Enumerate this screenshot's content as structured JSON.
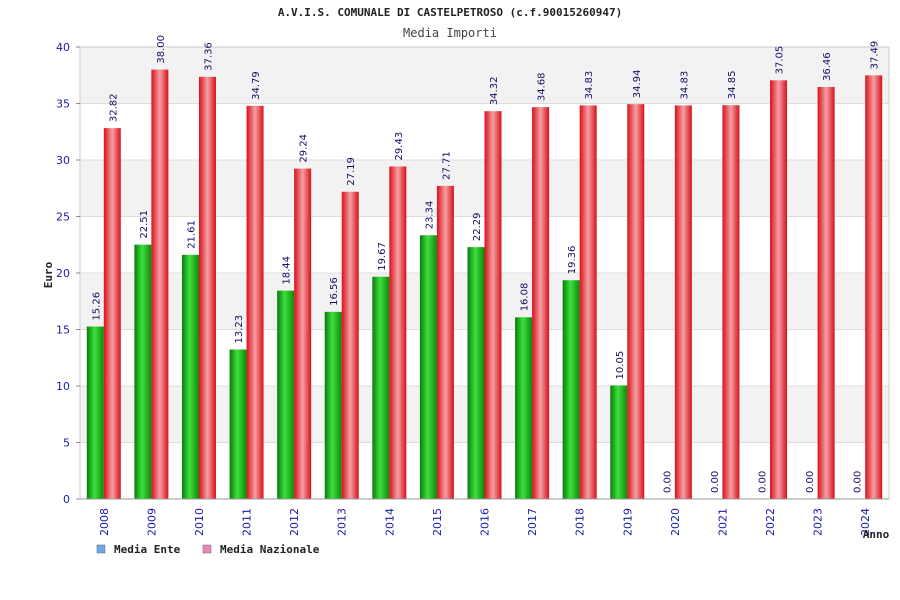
{
  "chart_data": {
    "type": "bar",
    "title": "A.V.I.S. COMUNALE DI CASTELPETROSO (c.f.90015260947)",
    "subtitle": "Media Importi",
    "xlabel": "Anno",
    "ylabel": "Euro",
    "ylim": [
      0,
      40
    ],
    "yticks": [
      "0",
      "5",
      "10",
      "15",
      "20",
      "25",
      "30",
      "35",
      "40"
    ],
    "grid": true,
    "legend_position": "bottom-left",
    "categories": [
      "2008",
      "2009",
      "2010",
      "2011",
      "2012",
      "2013",
      "2014",
      "2015",
      "2016",
      "2017",
      "2018",
      "2019",
      "2020",
      "2021",
      "2022",
      "2023",
      "2024"
    ],
    "series": [
      {
        "name": "Media Ente",
        "color": "#1fb81f",
        "legend_color": "#6fa8e8",
        "values": [
          15.26,
          22.51,
          21.61,
          13.23,
          18.44,
          16.56,
          19.67,
          23.34,
          22.29,
          16.08,
          19.36,
          10.05,
          0.0,
          0.0,
          0.0,
          0.0,
          0.0
        ],
        "labels": [
          "15.26",
          "22.51",
          "21.61",
          "13.23",
          "18.44",
          "16.56",
          "19.67",
          "23.34",
          "22.29",
          "16.08",
          "19.36",
          "10.05",
          "0.00",
          "0.00",
          "0.00",
          "0.00",
          "0.00"
        ]
      },
      {
        "name": "Media Nazionale",
        "color": "#e8202a",
        "legend_color": "#e888b8",
        "values": [
          32.82,
          38.0,
          37.36,
          34.79,
          29.24,
          27.19,
          29.43,
          27.71,
          34.32,
          34.68,
          34.83,
          34.94,
          34.83,
          34.85,
          37.05,
          36.46,
          37.49
        ],
        "labels": [
          "32.82",
          "38.00",
          "37.36",
          "34.79",
          "29.24",
          "27.19",
          "29.43",
          "27.71",
          "34.32",
          "34.68",
          "34.83",
          "34.94",
          "34.83",
          "34.85",
          "37.05",
          "36.46",
          "37.49"
        ]
      }
    ]
  }
}
